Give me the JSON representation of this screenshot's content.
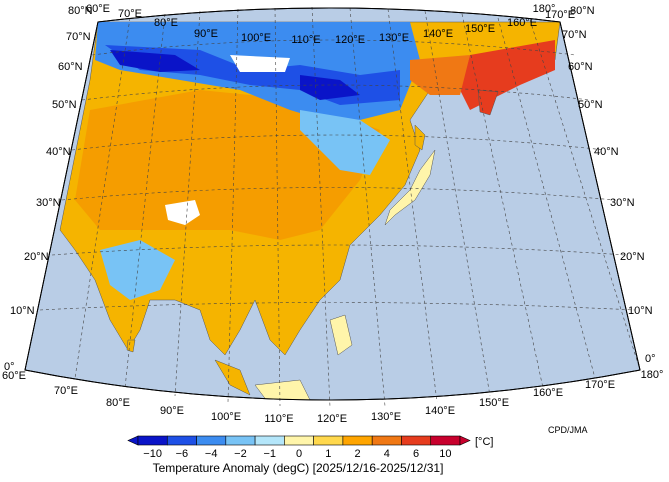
{
  "map": {
    "title": "Temperature Anomaly (degC) [2025/12/16-2025/12/31]",
    "credit": "CPD/JMA",
    "unit": "[°C]",
    "top_lon_labels": [
      "60°E",
      "70°E",
      "80°E",
      "90°E",
      "100°E",
      "110°E",
      "120°E",
      "130°E",
      "140°E",
      "150°E",
      "160°E",
      "170°E",
      "180°"
    ],
    "bottom_lon_labels": [
      "60°E",
      "70°E",
      "80°E",
      "90°E",
      "100°E",
      "110°E",
      "120°E",
      "130°E",
      "140°E",
      "150°E",
      "160°E",
      "170°E",
      "180°"
    ],
    "left_lat_labels": [
      "80°N",
      "70°N",
      "60°N",
      "50°N",
      "40°N",
      "30°N",
      "20°N",
      "10°N",
      "0°"
    ],
    "right_lat_labels": [
      "80°N",
      "70°N",
      "60°N",
      "50°N",
      "40°N",
      "30°N",
      "20°N",
      "10°N",
      "0°"
    ]
  },
  "colorbar": {
    "tick_labels": [
      "−10",
      "−6",
      "−4",
      "−2",
      "−1",
      "0",
      "1",
      "2",
      "4",
      "6",
      "10"
    ],
    "colors": [
      "#0a14c8",
      "#1e50e6",
      "#3c8cf0",
      "#78c3f5",
      "#b4e6fa",
      "#fff5aa",
      "#ffd84d",
      "#ffa500",
      "#f07814",
      "#e63c1e",
      "#c8002d"
    ]
  }
}
